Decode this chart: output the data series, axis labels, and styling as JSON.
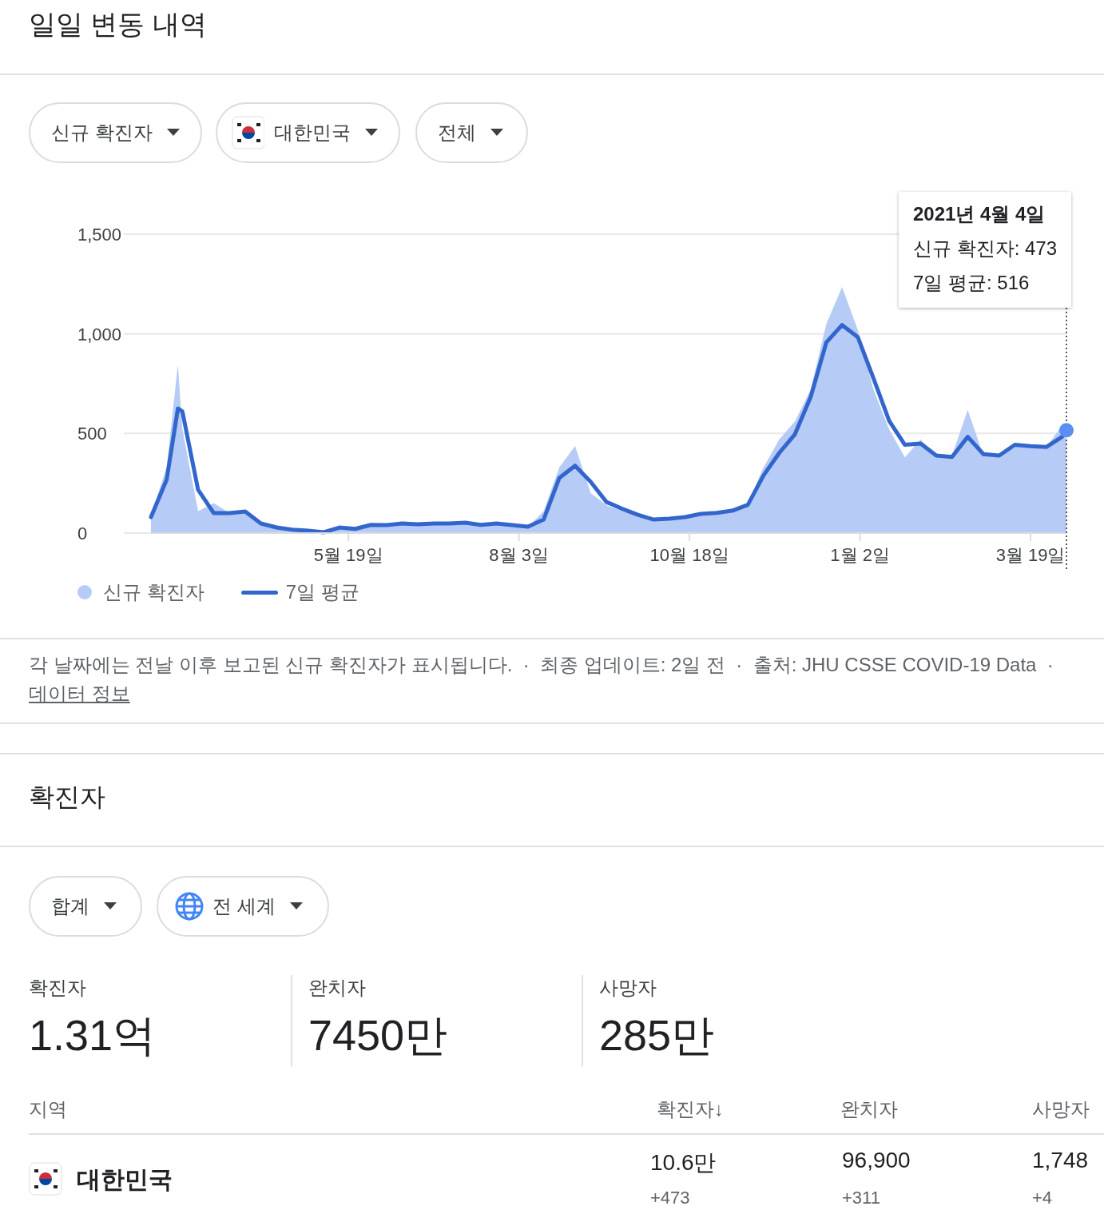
{
  "chart_data": [
    {
      "type": "line",
      "title": "일일 변동 내역",
      "x": [
        "2020-02-21",
        "2020-02-28",
        "2020-03-04",
        "2020-03-06",
        "2020-03-13",
        "2020-03-20",
        "2020-03-27",
        "2020-04-03",
        "2020-04-10",
        "2020-04-17",
        "2020-04-24",
        "2020-05-01",
        "2020-05-08",
        "2020-05-15",
        "2020-05-22",
        "2020-05-29",
        "2020-06-05",
        "2020-06-12",
        "2020-06-19",
        "2020-06-26",
        "2020-07-03",
        "2020-07-10",
        "2020-07-17",
        "2020-07-24",
        "2020-07-31",
        "2020-08-07",
        "2020-08-14",
        "2020-08-21",
        "2020-08-28",
        "2020-09-04",
        "2020-09-11",
        "2020-09-18",
        "2020-09-25",
        "2020-10-02",
        "2020-10-09",
        "2020-10-16",
        "2020-10-23",
        "2020-10-30",
        "2020-11-06",
        "2020-11-13",
        "2020-11-20",
        "2020-11-27",
        "2020-12-04",
        "2020-12-11",
        "2020-12-18",
        "2020-12-25",
        "2021-01-01",
        "2021-01-08",
        "2021-01-15",
        "2021-01-22",
        "2021-01-29",
        "2021-02-05",
        "2021-02-12",
        "2021-02-19",
        "2021-02-26",
        "2021-03-05",
        "2021-03-12",
        "2021-03-19",
        "2021-03-26",
        "2021-04-02",
        "2021-04-04"
      ],
      "series": [
        {
          "name": "신규 확진자",
          "type": "area",
          "color": "#b6cbf5",
          "values": [
            90,
            330,
            846,
            520,
            110,
            150,
            100,
            110,
            40,
            20,
            15,
            10,
            5,
            30,
            25,
            45,
            40,
            55,
            45,
            50,
            50,
            60,
            45,
            55,
            40,
            30,
            110,
            330,
            437,
            200,
            140,
            110,
            90,
            70,
            75,
            85,
            100,
            105,
            120,
            150,
            330,
            470,
            560,
            720,
            1050,
            1235,
            1020,
            720,
            520,
            380,
            470,
            380,
            390,
            618,
            390,
            380,
            450,
            440,
            430,
            540,
            473
          ]
        },
        {
          "name": "7일 평균",
          "type": "line",
          "color": "#3366cc",
          "values": [
            80,
            269,
            625,
            610,
            217,
            100,
            100,
            108,
            48,
            28,
            17,
            12,
            4,
            28,
            21,
            41,
            40,
            48,
            44,
            48,
            48,
            52,
            41,
            48,
            40,
            32,
            68,
            277,
            338,
            257,
            156,
            122,
            92,
            68,
            72,
            80,
            96,
            101,
            112,
            142,
            289,
            402,
            496,
            683,
            957,
            1044,
            984,
            777,
            563,
            443,
            449,
            389,
            382,
            483,
            396,
            389,
            443,
            436,
            432,
            483,
            516
          ]
        }
      ],
      "xlim": [
        "2020-02-21",
        "2021-04-04"
      ],
      "xticks": [
        {
          "value": "2020-05-19",
          "label": "5월 19일"
        },
        {
          "value": "2020-08-03",
          "label": "8월 3일"
        },
        {
          "value": "2020-10-18",
          "label": "10월 18일"
        },
        {
          "value": "2021-01-02",
          "label": "1월 2일"
        },
        {
          "value": "2021-03-19",
          "label": "3월 19일"
        }
      ],
      "ylim": [
        0,
        1500
      ],
      "yticks": [
        0,
        500,
        {
          "value": 1000,
          "label": "1,000"
        },
        {
          "value": 1500,
          "label": "1,500"
        }
      ],
      "grid": "y",
      "legend": "bottom left",
      "ref_lines": [
        {
          "axis": "x",
          "value": "2021-04-04",
          "line_style": "dotted",
          "color": "#555555"
        }
      ],
      "annotations": [
        "신규 확진자",
        "대한민국",
        "전체",
        "2021년 4월 4일\n신규 확진자: 473\n7일 평균: 516",
        "각 날짜에는 전날 이후 보고된 신규 확진자가 표시됩니다.  ·  최종 업데이트: 2일 전  ·  출처: JHU CSSE COVID-19 Data  ·",
        "데이터 정보"
      ]
    },
    {
      "type": "other",
      "title": "확진자",
      "annotations": [
        "합계",
        "전 세계",
        "확진자",
        "1.31억",
        "완치자",
        "7450만",
        "사망자",
        "285만",
        "지역",
        "확진자↓",
        "완치자",
        "사망자",
        "대한민국",
        "10.6만",
        "+473",
        "96,900",
        "+311",
        "1,748",
        "+4"
      ]
    }
  ]
}
